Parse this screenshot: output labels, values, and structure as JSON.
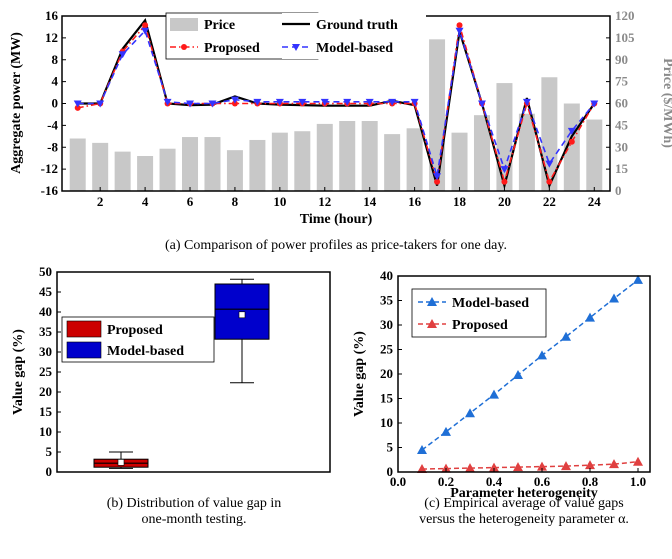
{
  "chart_data": [
    {
      "type": "bar+line",
      "caption": "(a) Comparison of power profiles as price-takers for one day.",
      "xlabel": "Time (hour)",
      "ylabel": "Aggregate power (MW)",
      "ylabel_right": "Price ($/MWh)",
      "xlim": [
        0.3,
        24.7
      ],
      "ylim": [
        -16,
        16
      ],
      "ylim_right": [
        0,
        120
      ],
      "x_ticks": [
        2,
        4,
        6,
        8,
        10,
        12,
        14,
        16,
        18,
        20,
        22,
        24
      ],
      "y_ticks": [
        -16,
        -12,
        -8,
        -4,
        0,
        4,
        8,
        12,
        16
      ],
      "y_ticks_right": [
        0,
        15,
        30,
        45,
        60,
        75,
        90,
        105,
        120
      ],
      "legend": [
        "Price",
        "Ground truth",
        "Proposed",
        "Model-based"
      ],
      "colors": {
        "price": "#c8c8c8",
        "ground_truth": "#000000",
        "proposed": "#ff1a1a",
        "model_based": "#3333ff"
      },
      "x": [
        1,
        2,
        3,
        4,
        5,
        6,
        7,
        8,
        9,
        10,
        11,
        12,
        13,
        14,
        15,
        16,
        17,
        18,
        19,
        20,
        21,
        22,
        23,
        24
      ],
      "price": [
        36,
        33,
        27,
        24,
        29,
        37,
        37,
        28,
        35,
        40,
        41,
        46,
        48,
        48,
        39,
        43,
        104,
        40,
        52,
        74,
        53,
        78,
        60,
        49
      ],
      "series": [
        {
          "name": "Ground truth",
          "values": [
            0,
            0,
            10,
            15.2,
            0,
            -0.3,
            -0.2,
            1.3,
            0,
            -0.2,
            -0.3,
            -0.4,
            -0.4,
            -0.4,
            0.5,
            -0.3,
            -15,
            13.2,
            0,
            -15,
            1,
            -15,
            -6,
            0
          ]
        },
        {
          "name": "Proposed",
          "values": [
            -0.8,
            0,
            9.5,
            14.3,
            0,
            0,
            0,
            0,
            0,
            0,
            0,
            0,
            0,
            0,
            0,
            0,
            -14.3,
            14.3,
            0,
            -14.3,
            0,
            -14.3,
            -7,
            0
          ]
        },
        {
          "name": "Model-based",
          "values": [
            0,
            0,
            9,
            13.3,
            0.3,
            0,
            0,
            0.7,
            0.3,
            0.3,
            0.3,
            0.3,
            0.3,
            0.3,
            0.3,
            0.3,
            -13.3,
            13.3,
            0,
            -12,
            0.3,
            -11,
            -5,
            0
          ]
        }
      ]
    },
    {
      "type": "box",
      "caption_line1": "(b) Distribution of value gap in",
      "caption_line2": "one-month testing.",
      "ylabel": "Value gap (%)",
      "ylim": [
        0,
        50
      ],
      "y_ticks": [
        0,
        5,
        10,
        15,
        20,
        25,
        30,
        35,
        40,
        45,
        50
      ],
      "legend": [
        "Proposed",
        "Model-based"
      ],
      "boxes": [
        {
          "name": "Proposed",
          "color": "#cc0000",
          "min": 0.9,
          "q1": 1.2,
          "median": 2.2,
          "q3": 3.2,
          "max": 5,
          "mean": 2.4
        },
        {
          "name": "Model-based",
          "color": "#0000cc",
          "min": 22.3,
          "q1": 33.2,
          "median": 40.7,
          "q3": 47,
          "max": 48.2,
          "mean": 39.3
        }
      ]
    },
    {
      "type": "line",
      "caption_line1": "(c) Empirical average of value gaps",
      "caption_line2": "versus the heterogeneity parameter α.",
      "xlabel": "Parameter heterogeneity",
      "ylabel": "Value gap (%)",
      "xlim": [
        0,
        1.05
      ],
      "ylim": [
        0,
        40
      ],
      "x_ticks": [
        "0.0",
        "0.2",
        "0.4",
        "0.6",
        "0.8",
        "1.0"
      ],
      "y_ticks": [
        0,
        5,
        10,
        15,
        20,
        25,
        30,
        35,
        40
      ],
      "legend": [
        "Model-based",
        "Proposed"
      ],
      "x": [
        0.1,
        0.2,
        0.3,
        0.4,
        0.5,
        0.6,
        0.7,
        0.8,
        0.9,
        1.0
      ],
      "series": [
        {
          "name": "Model-based",
          "color": "#1f6fd6",
          "values": [
            4.5,
            8.2,
            12,
            15.8,
            19.8,
            23.8,
            27.6,
            31.5,
            35.4,
            39.2
          ]
        },
        {
          "name": "Proposed",
          "color": "#e04040",
          "values": [
            0.6,
            0.7,
            0.8,
            0.9,
            1.0,
            1.1,
            1.2,
            1.4,
            1.6,
            2.1
          ]
        }
      ]
    }
  ]
}
